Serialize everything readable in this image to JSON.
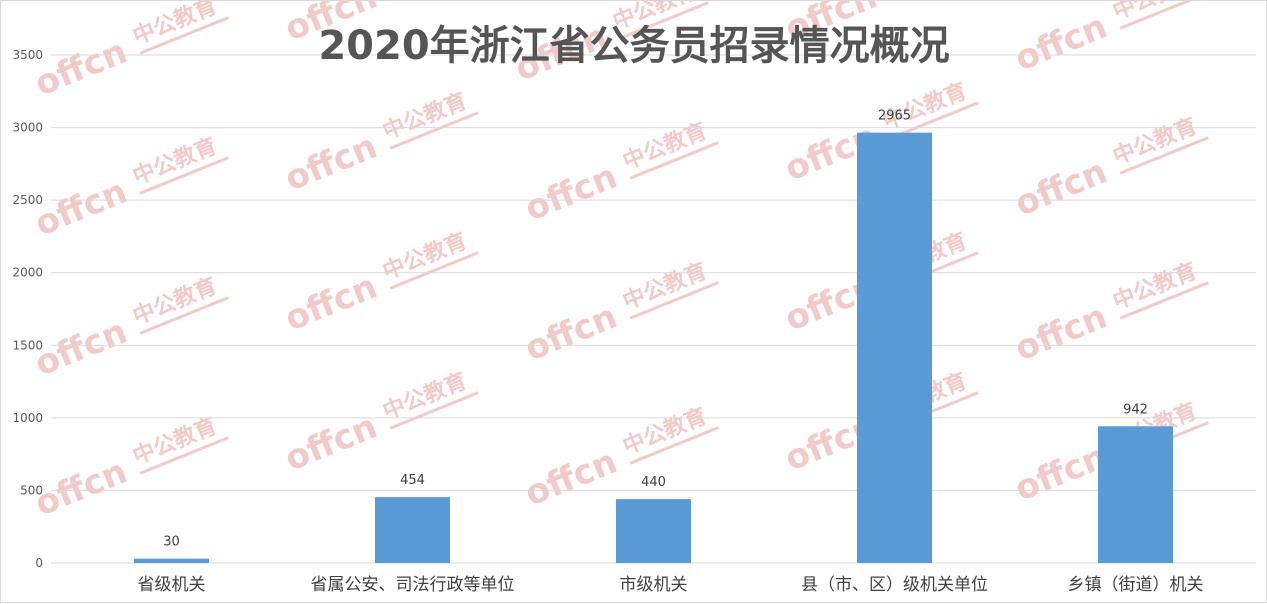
{
  "colors": {
    "bar": "#5b9bd5",
    "grid": "#d9d9d9",
    "watermark": "#e8a0a0"
  },
  "watermark": {
    "latin": "offcn",
    "chinese": "中公教育"
  },
  "chart_data": {
    "type": "bar",
    "title": "2020年浙江省公务员招录情况概况",
    "categories": [
      "省级机关",
      "省属公安、司法行政等单位",
      "市级机关",
      "县（市、区）级机关单位",
      "乡镇（街道）机关"
    ],
    "values": [
      30,
      454,
      440,
      2965,
      942
    ],
    "ylim": [
      0,
      3500
    ],
    "yticks": [
      0,
      500,
      1000,
      1500,
      2000,
      2500,
      3000,
      3500
    ],
    "grid": true,
    "legend": "none",
    "xlabel": "",
    "ylabel": ""
  }
}
